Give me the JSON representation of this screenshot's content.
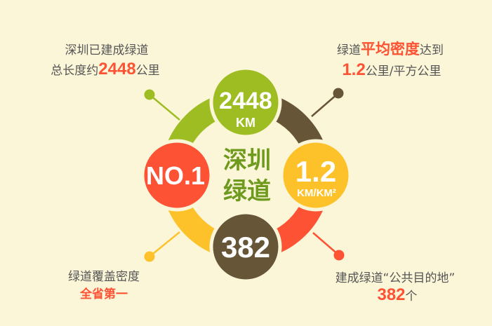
{
  "colors": {
    "background": "#fcf6d8",
    "green": "#9ebd23",
    "brown": "#665536",
    "red": "#fd5234",
    "yellow": "#fdc22a",
    "center_text": "#6e9a1e",
    "caption": "#555555"
  },
  "center": {
    "line1": "深圳",
    "line2": "绿道"
  },
  "circles": {
    "top": {
      "value": "2448",
      "unit": "KM"
    },
    "right": {
      "value": "1.2",
      "unit": "KM/KM²"
    },
    "bottom": {
      "value": "382"
    },
    "left": {
      "value": "NO.1"
    }
  },
  "captions": {
    "top_left": {
      "line1": "深圳已建成绿道",
      "line2_pre": "总长度约",
      "line2_highlight": "2448",
      "line2_post": "公里"
    },
    "top_right": {
      "line1_pre": "绿道",
      "line1_highlight": "平均密度",
      "line1_post": "达到",
      "line2_highlight": "1.2",
      "line2_post": "公里/平方公里"
    },
    "bottom_left": {
      "line1": "绿道覆盖密度",
      "line2_highlight": "全省第一"
    },
    "bottom_right": {
      "line1": "建成绿道“公共目的地”",
      "line2_highlight": "382",
      "line2_post": "个"
    }
  }
}
